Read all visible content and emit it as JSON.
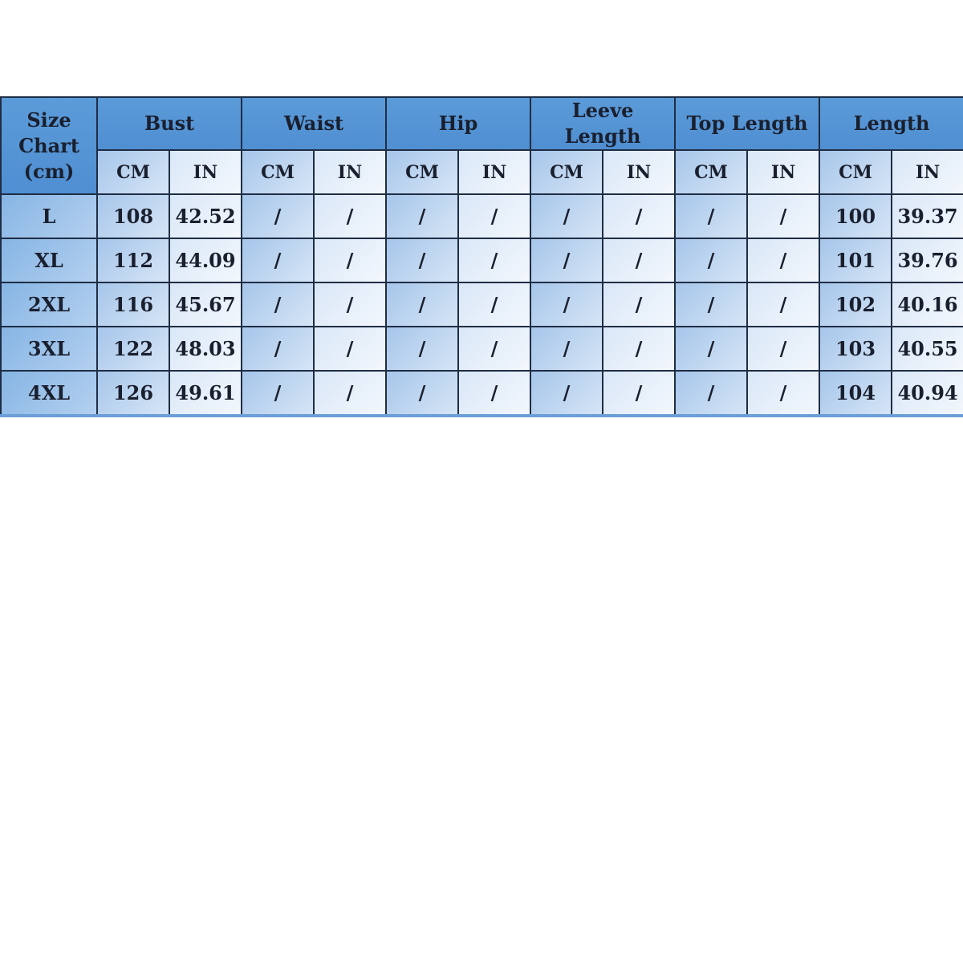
{
  "table": {
    "corner_label": "Size Chart (cm)",
    "groups": [
      "Bust",
      "Waist",
      "Hip",
      "Leeve Length",
      "Top Length",
      "Length"
    ],
    "unit_cm": "CM",
    "unit_in": "IN",
    "rows": [
      {
        "size": "L",
        "values": [
          "108",
          "42.52",
          "/",
          "/",
          "/",
          "/",
          "/",
          "/",
          "/",
          "/",
          "100",
          "39.37"
        ]
      },
      {
        "size": "XL",
        "values": [
          "112",
          "44.09",
          "/",
          "/",
          "/",
          "/",
          "/",
          "/",
          "/",
          "/",
          "101",
          "39.76"
        ]
      },
      {
        "size": "2XL",
        "values": [
          "116",
          "45.67",
          "/",
          "/",
          "/",
          "/",
          "/",
          "/",
          "/",
          "/",
          "102",
          "40.16"
        ]
      },
      {
        "size": "3XL",
        "values": [
          "122",
          "48.03",
          "/",
          "/",
          "/",
          "/",
          "/",
          "/",
          "/",
          "/",
          "103",
          "40.55"
        ]
      },
      {
        "size": "4XL",
        "values": [
          "126",
          "49.61",
          "/",
          "/",
          "/",
          "/",
          "/",
          "/",
          "/",
          "/",
          "104",
          "40.94"
        ]
      }
    ]
  }
}
